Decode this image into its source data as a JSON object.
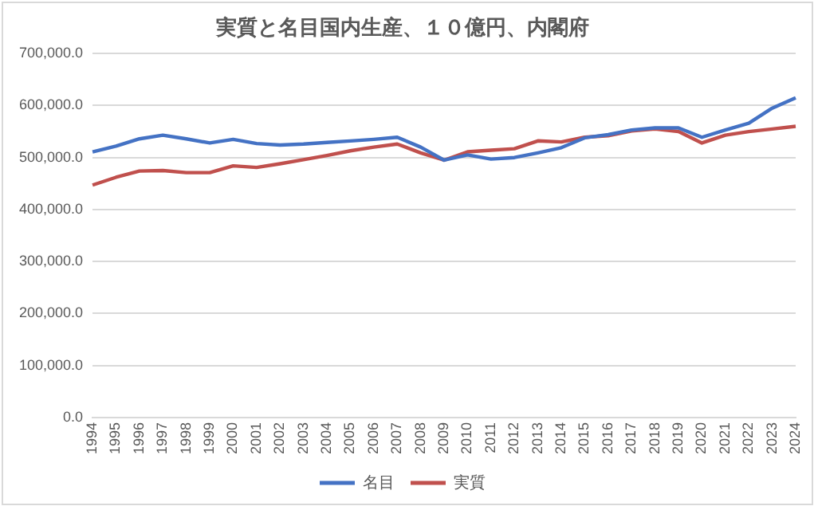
{
  "chart_data": {
    "type": "line",
    "title": "実質と名目国内生産、１０億円、内閣府",
    "categories": [
      "1994",
      "1995",
      "1996",
      "1997",
      "1998",
      "1999",
      "2000",
      "2001",
      "2002",
      "2003",
      "2004",
      "2005",
      "2006",
      "2007",
      "2008",
      "2009",
      "2010",
      "2011",
      "2012",
      "2013",
      "2014",
      "2015",
      "2016",
      "2017",
      "2018",
      "2019",
      "2020",
      "2021",
      "2022",
      "2023",
      "2024"
    ],
    "series": [
      {
        "name": "名目",
        "color": "#4472c4",
        "values": [
          511000,
          522000,
          536000,
          543000,
          536000,
          528000,
          535000,
          527000,
          524000,
          526000,
          529000,
          532000,
          535000,
          539000,
          520000,
          495000,
          505000,
          497000,
          500000,
          509000,
          519000,
          538000,
          544000,
          553000,
          557000,
          557000,
          539000,
          553000,
          566000,
          595000,
          615000
        ]
      },
      {
        "name": "実質",
        "color": "#c0504d",
        "values": [
          447000,
          462000,
          474000,
          475000,
          471000,
          471000,
          484000,
          481000,
          488000,
          496000,
          504000,
          513000,
          520000,
          526000,
          509000,
          495000,
          511000,
          514000,
          517000,
          532000,
          530000,
          539000,
          542000,
          551000,
          555000,
          550000,
          528000,
          543000,
          550000,
          555000,
          560000
        ]
      }
    ],
    "ylim": [
      0,
      700000
    ],
    "yticks": [
      {
        "value": 0,
        "label": "0.0"
      },
      {
        "value": 100000,
        "label": "100,000.0"
      },
      {
        "value": 200000,
        "label": "200,000.0"
      },
      {
        "value": 300000,
        "label": "300,000.0"
      },
      {
        "value": 400000,
        "label": "400,000.0"
      },
      {
        "value": 500000,
        "label": "500,000.0"
      },
      {
        "value": 600000,
        "label": "600,000.0"
      },
      {
        "value": 700000,
        "label": "700,000.0"
      }
    ],
    "grid": "y",
    "legend": "bottom",
    "marker": "none",
    "line_style": "solid"
  }
}
